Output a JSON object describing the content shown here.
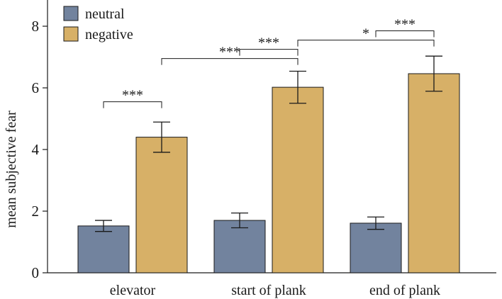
{
  "chart_data": {
    "type": "bar",
    "ylabel": "mean subjective fear",
    "xlabel": "",
    "ylim": [
      0,
      8.6
    ],
    "yticks": [
      0,
      2,
      4,
      6,
      8
    ],
    "categories": [
      "elevator",
      "start of plank",
      "end of plank"
    ],
    "series": [
      {
        "name": "neutral",
        "color": "#72839e",
        "values": [
          1.52,
          1.7,
          1.61
        ],
        "errors": [
          0.18,
          0.24,
          0.2
        ]
      },
      {
        "name": "negative",
        "color": "#d7b067",
        "values": [
          4.4,
          6.02,
          6.46
        ],
        "errors": [
          0.49,
          0.52,
          0.57
        ]
      }
    ],
    "legend_position": "top-left",
    "grid": false,
    "annotations": [
      {
        "label": "***",
        "from": [
          0,
          0
        ],
        "to": [
          0,
          1
        ],
        "y": 5.55
      },
      {
        "label": "***",
        "from": [
          0,
          1
        ],
        "to": [
          1,
          1
        ],
        "y": 6.95
      },
      {
        "label": "***",
        "from": [
          1,
          0
        ],
        "to": [
          1,
          1
        ],
        "y": 7.25
      },
      {
        "label": "*",
        "from": [
          1,
          1
        ],
        "to": [
          2,
          1
        ],
        "y": 7.55
      },
      {
        "label": "***",
        "from": [
          2,
          0
        ],
        "to": [
          2,
          1
        ],
        "y": 7.85
      }
    ]
  }
}
